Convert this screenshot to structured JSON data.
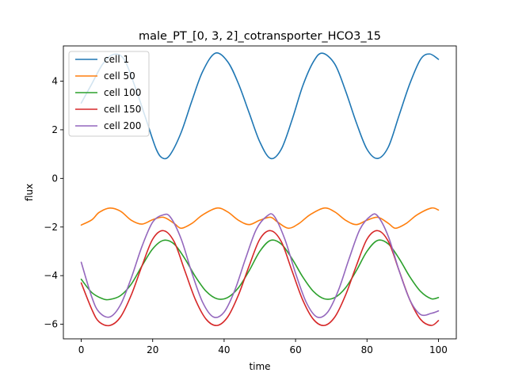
{
  "chart_data": {
    "type": "line",
    "title": "male_PT_[0, 3, 2]_cotransporter_HCO3_15",
    "xlabel": "time",
    "ylabel": "flux",
    "xlim": [
      -5,
      105
    ],
    "ylim": [
      -6.6,
      5.45
    ],
    "xticks": [
      0,
      20,
      40,
      60,
      80,
      100
    ],
    "yticks": [
      -6,
      -4,
      -2,
      0,
      2,
      4
    ],
    "xtick_labels": [
      "0",
      "20",
      "40",
      "60",
      "80",
      "100"
    ],
    "ytick_labels": [
      "−6",
      "−4",
      "−2",
      "0",
      "2",
      "4"
    ],
    "grid": false,
    "legend_position": "upper left",
    "series": [
      {
        "name": "cell 1",
        "color": "#1f77b4",
        "x": [
          0,
          3,
          6,
          9,
          12,
          15,
          18,
          21,
          23,
          25,
          28,
          31,
          34,
          37.5,
          41,
          44,
          47,
          50,
          53,
          56,
          59,
          62,
          65,
          67.5,
          71,
          74,
          77,
          80,
          83,
          86,
          89,
          92,
          95,
          97.5,
          100
        ],
        "y": [
          3.1,
          3.9,
          4.7,
          5.1,
          4.9,
          3.8,
          2.5,
          1.2,
          0.82,
          1.0,
          1.9,
          3.2,
          4.4,
          5.15,
          4.8,
          3.9,
          2.7,
          1.5,
          0.82,
          1.2,
          2.4,
          3.8,
          4.8,
          5.15,
          4.7,
          3.6,
          2.3,
          1.2,
          0.82,
          1.3,
          2.6,
          3.9,
          4.9,
          5.12,
          4.9
        ]
      },
      {
        "name": "cell 50",
        "color": "#ff7f0e",
        "x": [
          0,
          3,
          5,
          8,
          11,
          14,
          17,
          20,
          23,
          26,
          28,
          31,
          34,
          38,
          41,
          44,
          47,
          50,
          53,
          55,
          58,
          61,
          64,
          68,
          71,
          74,
          77,
          80,
          83,
          86,
          88,
          91,
          94,
          98,
          100
        ],
        "y": [
          -1.92,
          -1.7,
          -1.4,
          -1.22,
          -1.35,
          -1.72,
          -1.88,
          -1.7,
          -1.6,
          -1.85,
          -2.05,
          -1.85,
          -1.5,
          -1.22,
          -1.38,
          -1.72,
          -1.9,
          -1.72,
          -1.6,
          -1.8,
          -2.05,
          -1.85,
          -1.5,
          -1.22,
          -1.38,
          -1.72,
          -1.9,
          -1.72,
          -1.6,
          -1.85,
          -2.05,
          -1.85,
          -1.5,
          -1.22,
          -1.3
        ]
      },
      {
        "name": "cell 100",
        "color": "#2ca02c",
        "x": [
          0,
          3,
          6,
          8,
          11,
          14,
          17,
          20,
          23,
          26,
          29,
          32,
          35,
          38,
          41,
          44,
          47,
          50,
          53,
          56,
          59,
          62,
          65,
          68,
          71,
          74,
          77,
          80,
          83,
          86,
          89,
          92,
          95,
          98,
          100
        ],
        "y": [
          -4.15,
          -4.7,
          -4.95,
          -4.98,
          -4.82,
          -4.35,
          -3.6,
          -2.9,
          -2.55,
          -2.7,
          -3.3,
          -4.05,
          -4.65,
          -4.95,
          -4.9,
          -4.5,
          -3.8,
          -3.0,
          -2.55,
          -2.7,
          -3.3,
          -4.05,
          -4.65,
          -4.95,
          -4.9,
          -4.5,
          -3.8,
          -3.0,
          -2.55,
          -2.7,
          -3.3,
          -4.05,
          -4.65,
          -4.95,
          -4.9
        ]
      },
      {
        "name": "cell 150",
        "color": "#d62728",
        "x": [
          0,
          3,
          5,
          8,
          11,
          14,
          17,
          20,
          23,
          26,
          29,
          32,
          35,
          38,
          41,
          44,
          47,
          50,
          53,
          56,
          59,
          62,
          65,
          68,
          71,
          74,
          77,
          80,
          83,
          86,
          89,
          92,
          95,
          98,
          100
        ],
        "y": [
          -4.3,
          -5.4,
          -5.9,
          -6.05,
          -5.7,
          -4.8,
          -3.6,
          -2.5,
          -2.15,
          -2.6,
          -3.8,
          -5.0,
          -5.8,
          -6.05,
          -5.7,
          -4.8,
          -3.6,
          -2.5,
          -2.15,
          -2.6,
          -3.8,
          -5.0,
          -5.8,
          -6.05,
          -5.7,
          -4.8,
          -3.6,
          -2.5,
          -2.15,
          -2.6,
          -3.8,
          -5.0,
          -5.8,
          -6.05,
          -5.85
        ]
      },
      {
        "name": "cell 200",
        "color": "#9467bd",
        "x": [
          0,
          3,
          5,
          8,
          11,
          14,
          17,
          20,
          23,
          25,
          28,
          31,
          34,
          37,
          40,
          43,
          46,
          49,
          52,
          54,
          57,
          60,
          63,
          66,
          69,
          72,
          75,
          78,
          81,
          83,
          86,
          89,
          92,
          95,
          98,
          100
        ],
        "y": [
          -3.45,
          -4.9,
          -5.5,
          -5.7,
          -5.2,
          -4.1,
          -2.8,
          -1.8,
          -1.5,
          -1.6,
          -2.5,
          -3.9,
          -5.1,
          -5.7,
          -5.5,
          -4.6,
          -3.3,
          -2.1,
          -1.55,
          -1.55,
          -2.5,
          -3.9,
          -5.1,
          -5.7,
          -5.5,
          -4.6,
          -3.3,
          -2.1,
          -1.55,
          -1.55,
          -2.4,
          -3.8,
          -5.0,
          -5.6,
          -5.55,
          -5.45
        ]
      }
    ]
  }
}
